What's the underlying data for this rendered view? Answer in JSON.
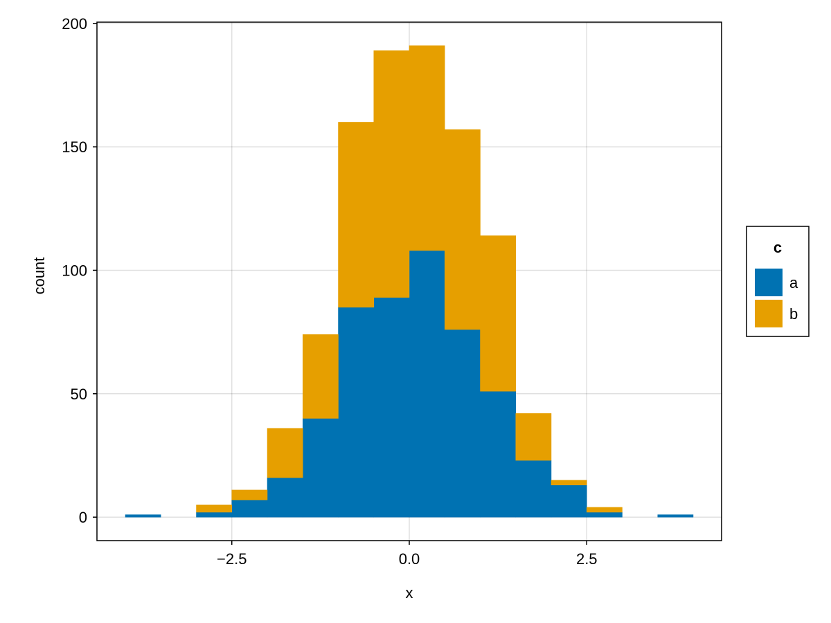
{
  "chart_data": {
    "type": "bar",
    "stacked": true,
    "title": "",
    "xlabel": "x",
    "ylabel": "count",
    "bin_edges": [
      -4.0,
      -3.5,
      -3.0,
      -2.5,
      -2.0,
      -1.5,
      -1.0,
      -0.5,
      0.0,
      0.5,
      1.0,
      1.5,
      2.0,
      2.5,
      3.0,
      3.5,
      4.0
    ],
    "series": [
      {
        "name": "a",
        "color": "#0072b2",
        "values": [
          1,
          0,
          2,
          7,
          16,
          40,
          85,
          89,
          108,
          76,
          51,
          23,
          13,
          2,
          0,
          1
        ]
      },
      {
        "name": "b",
        "color": "#e69f00",
        "values": [
          0,
          0,
          3,
          4,
          20,
          34,
          75,
          100,
          83,
          81,
          63,
          19,
          2,
          2,
          0,
          0
        ]
      }
    ],
    "xlim": [
      -4.4,
      4.4
    ],
    "ylim": [
      -9.5,
      200.5
    ],
    "xticks": [
      {
        "value": -2.5,
        "label": "−2.5"
      },
      {
        "value": 0.0,
        "label": "0.0"
      },
      {
        "value": 2.5,
        "label": "2.5"
      }
    ],
    "yticks": [
      {
        "value": 0,
        "label": "0"
      },
      {
        "value": 50,
        "label": "50"
      },
      {
        "value": 100,
        "label": "100"
      },
      {
        "value": 150,
        "label": "150"
      },
      {
        "value": 200,
        "label": "200"
      }
    ],
    "grid": true,
    "legend": {
      "title": "c",
      "position": "right",
      "entries": [
        "a",
        "b"
      ]
    }
  }
}
